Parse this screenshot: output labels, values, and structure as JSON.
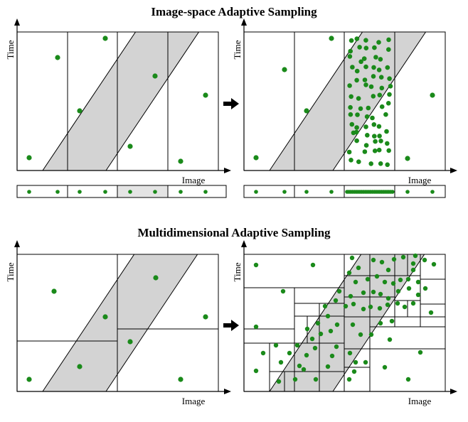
{
  "titles": {
    "top": "Image-space Adaptive Sampling",
    "bottom": "Multidimensional Adaptive Sampling"
  },
  "labels": {
    "time": "Time",
    "image": "Image"
  },
  "colors": {
    "sample": "#1a8a1a",
    "band": "#d3d3d3",
    "highlight": "#e4e4e4",
    "arrow": "#000000"
  },
  "icons": {
    "transition": "right-arrow-icon"
  }
}
